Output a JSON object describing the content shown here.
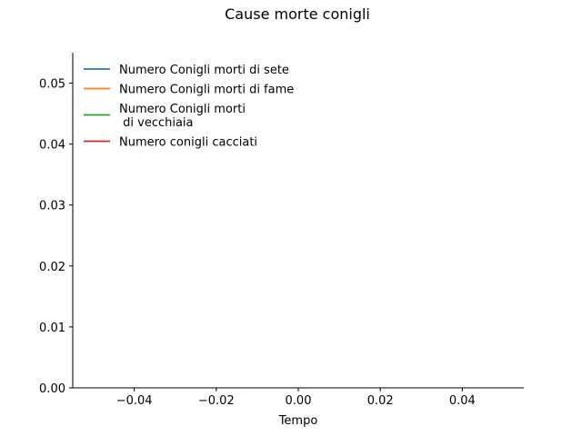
{
  "chart_data": {
    "type": "line",
    "title": "Cause morte conigli",
    "xlabel": "Tempo",
    "ylabel": "",
    "xlim": [
      -0.055,
      0.055
    ],
    "ylim": [
      0,
      0.055
    ],
    "x_ticks": [
      -0.04,
      -0.02,
      0.0,
      0.02,
      0.04
    ],
    "x_tick_labels": [
      "−0.04",
      "−0.02",
      "0.00",
      "0.02",
      "0.04"
    ],
    "y_ticks": [
      0.0,
      0.01,
      0.02,
      0.03,
      0.04,
      0.05
    ],
    "y_tick_labels": [
      "0.00",
      "0.01",
      "0.02",
      "0.03",
      "0.04",
      "0.05"
    ],
    "grid": false,
    "legend_position": "top-left",
    "series": [
      {
        "name": "Numero Conigli morti di sete",
        "color": "#1f77b4",
        "x": [],
        "y": []
      },
      {
        "name": "Numero Conigli morti di fame",
        "color": "#ff7f0e",
        "x": [],
        "y": []
      },
      {
        "name": "Numero Conigli morti\n di vecchiaia",
        "color": "#2ca02c",
        "x": [],
        "y": []
      },
      {
        "name": "Numero conigli cacciati",
        "color": "#d62728",
        "x": [],
        "y": []
      }
    ]
  }
}
